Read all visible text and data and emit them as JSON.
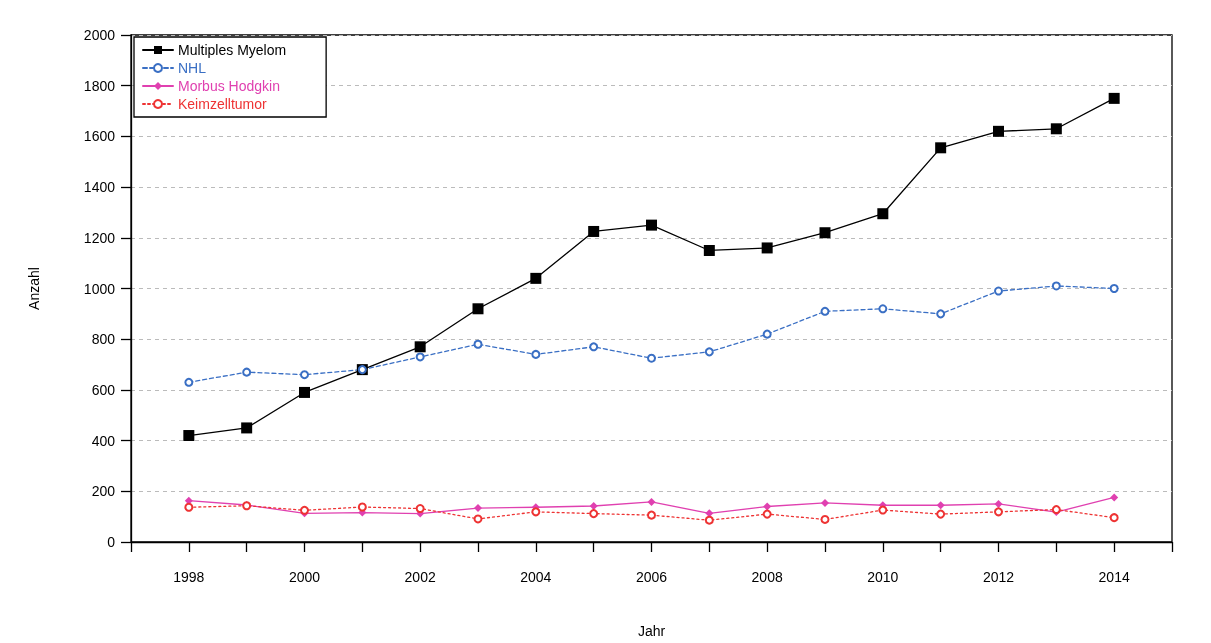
{
  "chart_data": {
    "type": "line",
    "xlabel": "Jahr",
    "ylabel": "Anzahl",
    "x": [
      1998,
      1999,
      2000,
      2001,
      2002,
      2003,
      2004,
      2005,
      2006,
      2007,
      2008,
      2009,
      2010,
      2011,
      2012,
      2013,
      2014
    ],
    "series": [
      {
        "name": "Multiples Myelom",
        "color": "#000000",
        "marker": "square",
        "line_style": "solid",
        "values": [
          420,
          450,
          590,
          680,
          770,
          920,
          1040,
          1225,
          1250,
          1150,
          1160,
          1220,
          1295,
          1555,
          1620,
          1630,
          1750
        ]
      },
      {
        "name": "NHL",
        "color": "#3a6fc4",
        "marker": "circle",
        "line_style": "dashed",
        "values": [
          630,
          670,
          660,
          680,
          730,
          780,
          740,
          770,
          725,
          750,
          820,
          910,
          920,
          900,
          990,
          1010,
          1000
        ]
      },
      {
        "name": "Morbus Hodgkin",
        "color": "#e040b0",
        "marker": "diamond",
        "line_style": "solid",
        "values": [
          163,
          146,
          113,
          116,
          112,
          134,
          137,
          142,
          158,
          113,
          140,
          154,
          145,
          145,
          150,
          118,
          176
        ]
      },
      {
        "name": "Keimzelltumor",
        "color": "#ee3333",
        "marker": "circle",
        "line_style": "dotted",
        "values": [
          137,
          143,
          125,
          138,
          132,
          91,
          119,
          112,
          106,
          86,
          110,
          89,
          126,
          110,
          119,
          128,
          96
        ]
      }
    ],
    "xlim": [
      1997,
      2015
    ],
    "xticks": [
      {
        "value": 1997,
        "label": null
      },
      1998,
      {
        "value": 1999,
        "label": null
      },
      2000,
      {
        "value": 2001,
        "label": null
      },
      2002,
      {
        "value": 2003,
        "label": null
      },
      2004,
      {
        "value": 2005,
        "label": null
      },
      2006,
      {
        "value": 2007,
        "label": null
      },
      2008,
      {
        "value": 2009,
        "label": null
      },
      2010,
      {
        "value": 2011,
        "label": null
      },
      2012,
      {
        "value": 2013,
        "label": null
      },
      2014,
      {
        "value": 2015,
        "label": null
      }
    ],
    "ylim": [
      0,
      2000
    ],
    "yticks": [
      0,
      200,
      400,
      600,
      800,
      1000,
      1200,
      1400,
      1600,
      1800,
      2000
    ],
    "grid": "y",
    "legend": "top left"
  }
}
